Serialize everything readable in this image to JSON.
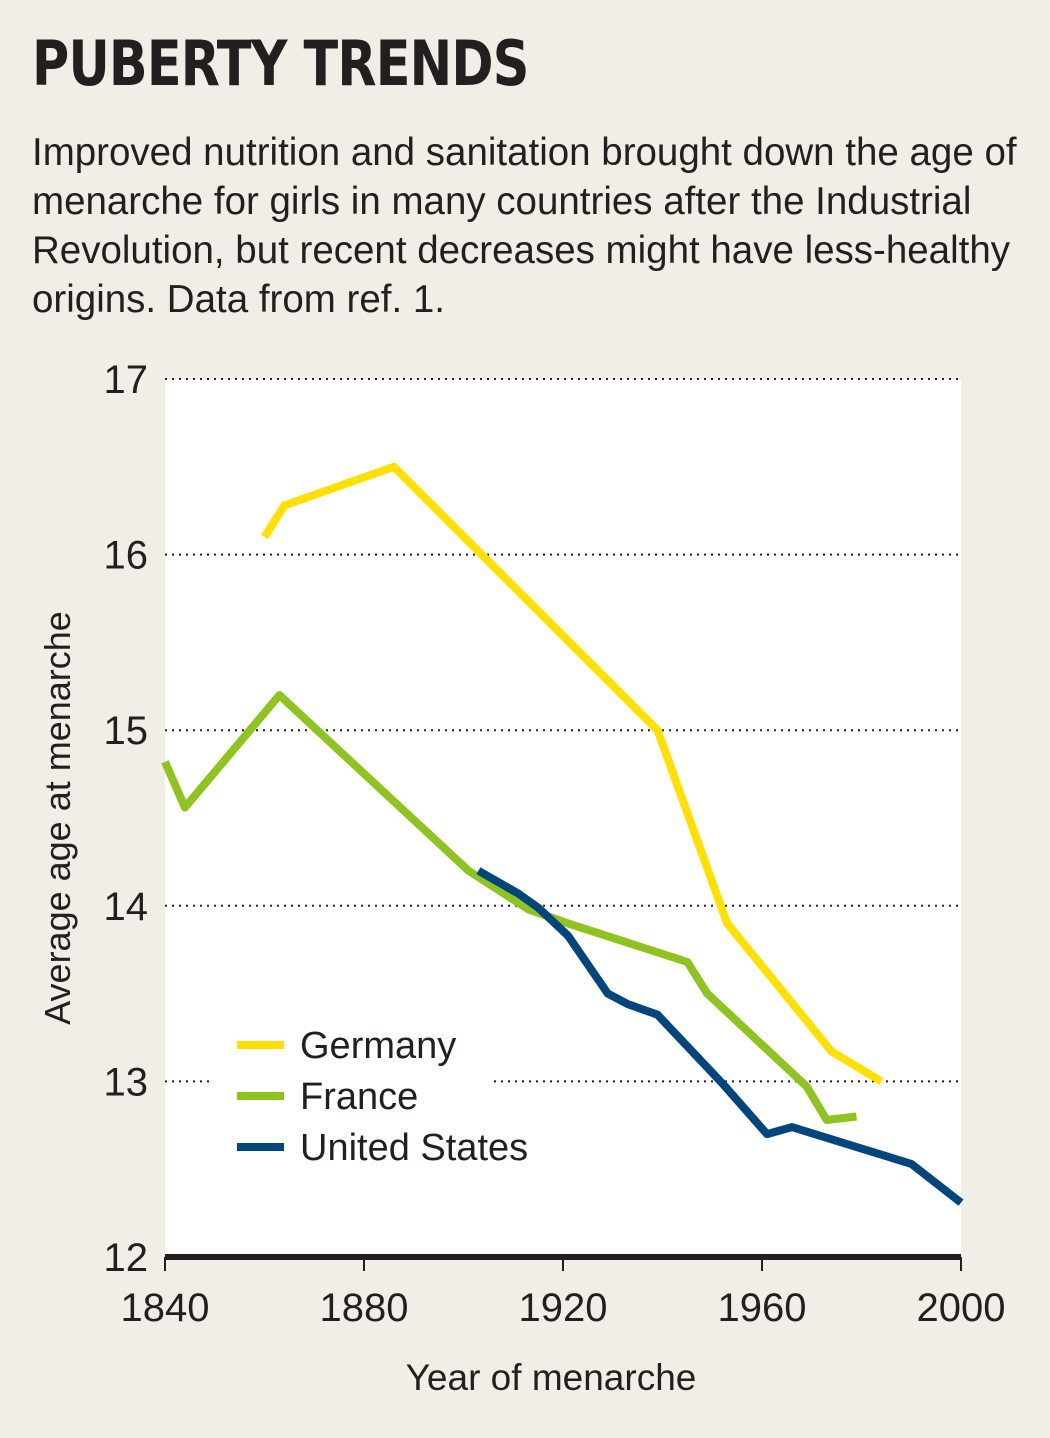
{
  "header": {
    "title": "PUBERTY TRENDS",
    "subtitle": "Improved nutrition and sanitation brought down the age of menarche for girls in many countries after the Industrial Revolution, but recent decreases might have less-healthy origins. Data from ref. 1."
  },
  "chart_data": {
    "type": "line",
    "title": "PUBERTY TRENDS",
    "xlabel": "Year of menarche",
    "ylabel": "Average age at menarche",
    "xlim": [
      1840,
      2000
    ],
    "ylim": [
      12,
      17
    ],
    "xticks": [
      1840,
      1880,
      1920,
      1960,
      2000
    ],
    "yticks": [
      12,
      13,
      14,
      15,
      16,
      17
    ],
    "grid": "horizontal dotted",
    "legend_position": "bottom-left",
    "series": [
      {
        "name": "Germany",
        "color": "#ffe000",
        "points": [
          [
            1860,
            16.1
          ],
          [
            1864,
            16.28
          ],
          [
            1886,
            16.5
          ],
          [
            1939,
            15.0
          ],
          [
            1953,
            13.9
          ],
          [
            1974,
            13.17
          ],
          [
            1984,
            13.0
          ]
        ]
      },
      {
        "name": "France",
        "color": "#8fc31f",
        "points": [
          [
            1840,
            14.82
          ],
          [
            1844,
            14.56
          ],
          [
            1863,
            15.2
          ],
          [
            1901,
            14.2
          ],
          [
            1913,
            13.98
          ],
          [
            1921,
            13.9
          ],
          [
            1945,
            13.68
          ],
          [
            1949,
            13.5
          ],
          [
            1969,
            12.97
          ],
          [
            1973,
            12.78
          ],
          [
            1979,
            12.8
          ]
        ]
      },
      {
        "name": "United States",
        "color": "#00457c",
        "points": [
          [
            1903,
            14.2
          ],
          [
            1911,
            14.07
          ],
          [
            1915,
            13.99
          ],
          [
            1921,
            13.83
          ],
          [
            1929,
            13.5
          ],
          [
            1933,
            13.44
          ],
          [
            1939,
            13.38
          ],
          [
            1952,
            12.99
          ],
          [
            1961,
            12.7
          ],
          [
            1966,
            12.74
          ],
          [
            1990,
            12.53
          ],
          [
            2000,
            12.31
          ]
        ]
      }
    ]
  }
}
